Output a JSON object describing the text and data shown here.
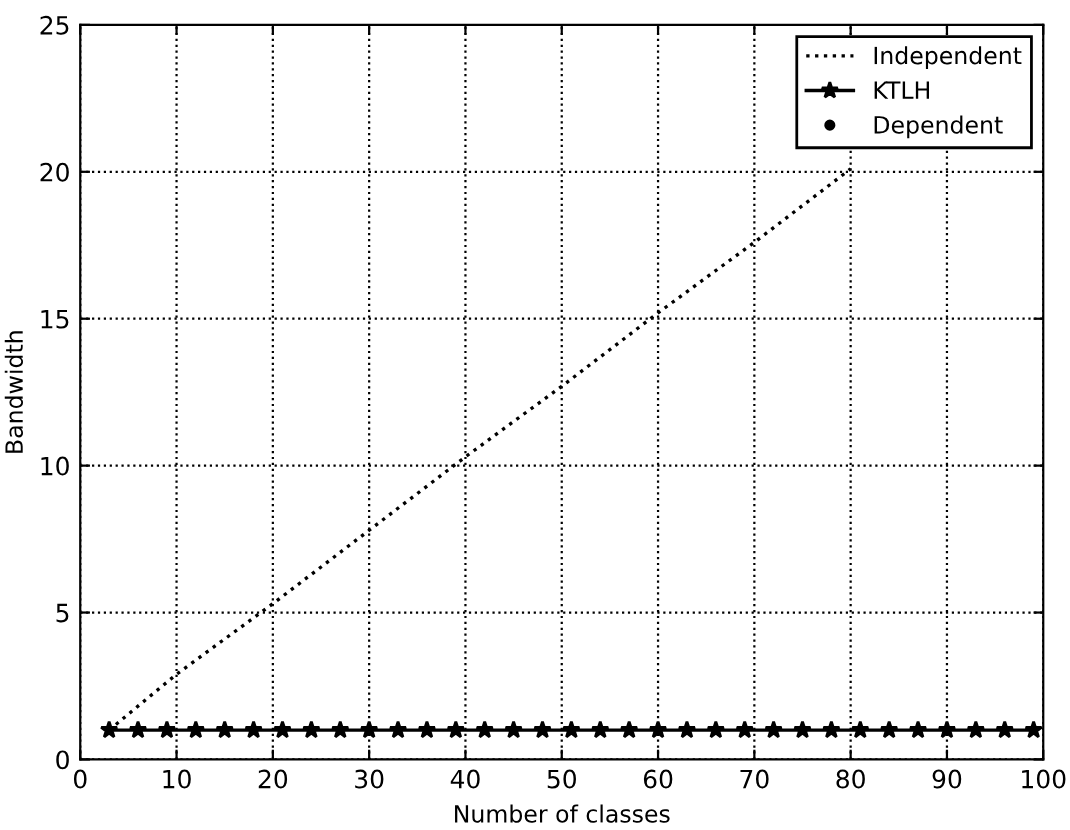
{
  "chart_data": {
    "type": "line",
    "xlabel": "Number of classes",
    "ylabel": "Bandwidth",
    "x": [
      3,
      6,
      9,
      12,
      15,
      18,
      21,
      24,
      27,
      30,
      33,
      36,
      39,
      42,
      45,
      48,
      51,
      54,
      57,
      60,
      63,
      66,
      69,
      72,
      75,
      78,
      81,
      84,
      87,
      90,
      93,
      96,
      99
    ],
    "xlim": [
      0,
      100
    ],
    "xticks": [
      0,
      10,
      20,
      30,
      40,
      50,
      60,
      70,
      80,
      90,
      100
    ],
    "ylim": [
      0,
      25
    ],
    "yticks": [
      0,
      5,
      10,
      15,
      20,
      25
    ],
    "grid": true,
    "legend": "top right",
    "series": [
      {
        "name": "Independent",
        "color": "#000000",
        "line_style": "dotted",
        "marker": "none",
        "x": [
          3,
          10,
          20,
          30,
          40,
          50,
          60,
          70,
          80
        ],
        "values": [
          1,
          2.9,
          5.3,
          7.8,
          10.3,
          12.7,
          15.2,
          17.6,
          20.1
        ]
      },
      {
        "name": "KTLH",
        "color": "#000000",
        "line_style": "solid",
        "marker": "star",
        "values": [
          1,
          1,
          1,
          1,
          1,
          1,
          1,
          1,
          1,
          1,
          1,
          1,
          1,
          1,
          1,
          1,
          1,
          1,
          1,
          1,
          1,
          1,
          1,
          1,
          1,
          1,
          1,
          1,
          1,
          1,
          1,
          1,
          1
        ]
      },
      {
        "name": "Dependent",
        "color": "#000000",
        "line_style": "none",
        "marker": "circle",
        "values": [
          null,
          null,
          null,
          null,
          null,
          null,
          null,
          null,
          null,
          null,
          null,
          null,
          null,
          null,
          null,
          null,
          null,
          null,
          null,
          null,
          null,
          null,
          null,
          null,
          null,
          null,
          null,
          null,
          null,
          null,
          null,
          null,
          null
        ]
      }
    ]
  }
}
